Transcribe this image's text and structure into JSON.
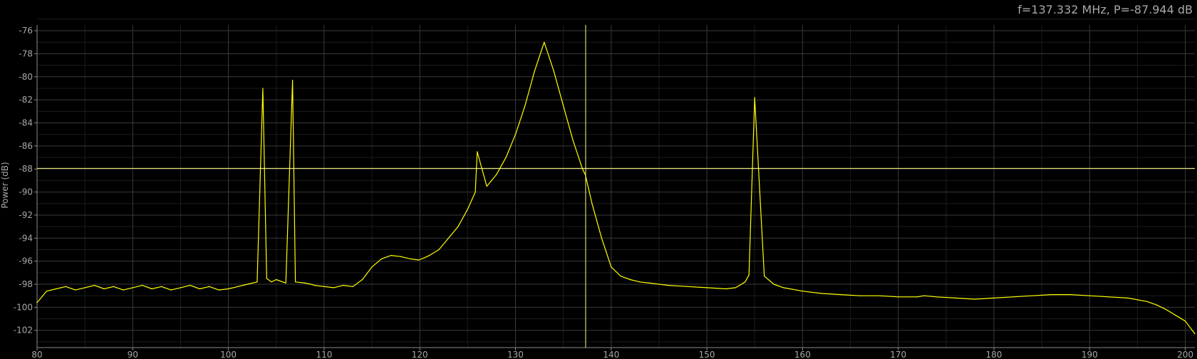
{
  "readout": {
    "text": "f=137.332 MHz, P=-87.944 dB"
  },
  "colors": {
    "background": "#000000",
    "trace": "#ffff00",
    "cursor": "#ffff88",
    "grid_major": "#3a3a3a",
    "grid_minor": "#1c1c1c",
    "axis": "#8a8a8a",
    "text": "#a8a8a8"
  },
  "chart_data": {
    "type": "line",
    "title": "",
    "xlabel": "",
    "ylabel": "Power (dB)",
    "xlim": [
      80,
      201
    ],
    "ylim": [
      -103.5,
      -75.5
    ],
    "xticks": [
      80,
      90,
      100,
      110,
      120,
      130,
      140,
      150,
      160,
      170,
      180,
      190,
      200
    ],
    "xtick_labels": [
      "80",
      "90",
      "100",
      "110",
      "120",
      "130",
      "140",
      "150",
      "160",
      "170",
      "180",
      "190",
      "200"
    ],
    "yticks": [
      -76,
      -78,
      -80,
      -82,
      -84,
      -86,
      -88,
      -90,
      -92,
      -94,
      -96,
      -98,
      -100,
      -102
    ],
    "ytick_labels": [
      "-76",
      "-78",
      "-80",
      "-82",
      "-84",
      "-86",
      "-88",
      "-90",
      "-92",
      "-94",
      "-96",
      "-98",
      "-100",
      "-102"
    ],
    "grid": true,
    "cursor": {
      "x": 137.332,
      "y": -87.944
    },
    "series": [
      {
        "x": [
          80,
          81,
          82,
          83,
          84,
          85,
          86,
          87,
          88,
          89,
          90,
          91,
          92,
          93,
          94,
          95,
          96,
          97,
          98,
          99,
          100,
          101,
          102,
          103,
          103.6,
          104,
          104.5,
          105,
          106,
          106.7,
          107,
          108,
          108.6,
          109,
          110,
          111,
          112,
          113,
          114,
          115,
          116,
          117,
          118,
          119,
          119.9,
          120.5,
          121,
          122,
          123,
          124,
          125,
          125.8,
          126,
          127,
          128,
          129,
          130,
          131,
          132,
          133,
          134,
          135,
          136,
          137,
          137.3,
          138,
          139,
          140,
          141,
          142,
          143,
          144,
          145,
          146,
          148,
          150,
          152,
          153,
          154,
          154.4,
          155,
          156,
          157,
          158,
          160,
          162,
          164,
          166,
          168,
          170,
          172,
          172.7,
          174,
          176,
          178,
          180,
          182,
          184,
          186,
          188,
          190,
          192,
          194,
          196,
          197,
          198,
          199,
          200,
          201
        ],
        "y": [
          -99.6,
          -98.6,
          -98.4,
          -98.2,
          -98.5,
          -98.3,
          -98.1,
          -98.4,
          -98.2,
          -98.5,
          -98.3,
          -98.1,
          -98.4,
          -98.2,
          -98.5,
          -98.3,
          -98.1,
          -98.4,
          -98.2,
          -98.5,
          -98.4,
          -98.2,
          -98.0,
          -97.8,
          -81.0,
          -97.5,
          -97.8,
          -97.6,
          -97.9,
          -80.3,
          -97.8,
          -97.9,
          -98.0,
          -98.1,
          -98.2,
          -98.3,
          -98.1,
          -98.2,
          -97.6,
          -96.5,
          -95.8,
          -95.5,
          -95.6,
          -95.8,
          -95.9,
          -95.7,
          -95.5,
          -95.0,
          -94.0,
          -93.0,
          -91.5,
          -90.0,
          -86.5,
          -89.5,
          -88.5,
          -87.0,
          -85.0,
          -82.5,
          -79.5,
          -77.0,
          -79.5,
          -82.5,
          -85.5,
          -88.0,
          -88.5,
          -91.0,
          -94.0,
          -96.5,
          -97.3,
          -97.6,
          -97.8,
          -97.9,
          -98.0,
          -98.1,
          -98.2,
          -98.3,
          -98.4,
          -98.3,
          -97.8,
          -97.2,
          -81.8,
          -97.3,
          -98.0,
          -98.3,
          -98.6,
          -98.8,
          -98.9,
          -99.0,
          -99.0,
          -99.1,
          -99.1,
          -99.0,
          -99.1,
          -99.2,
          -99.3,
          -99.2,
          -99.1,
          -99.0,
          -98.9,
          -98.9,
          -99.0,
          -99.1,
          -99.2,
          -99.5,
          -99.8,
          -100.2,
          -100.7,
          -101.2,
          -102.3
        ]
      }
    ]
  }
}
